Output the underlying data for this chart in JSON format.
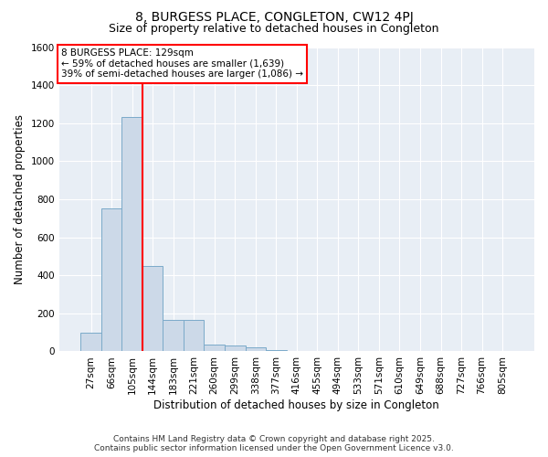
{
  "title": "8, BURGESS PLACE, CONGLETON, CW12 4PJ",
  "subtitle": "Size of property relative to detached houses in Congleton",
  "xlabel": "Distribution of detached houses by size in Congleton",
  "ylabel": "Number of detached properties",
  "categories": [
    "27sqm",
    "66sqm",
    "105sqm",
    "144sqm",
    "183sqm",
    "221sqm",
    "260sqm",
    "299sqm",
    "338sqm",
    "377sqm",
    "416sqm",
    "455sqm",
    "494sqm",
    "533sqm",
    "571sqm",
    "610sqm",
    "649sqm",
    "688sqm",
    "727sqm",
    "766sqm",
    "805sqm"
  ],
  "values": [
    100,
    750,
    1230,
    450,
    165,
    165,
    35,
    30,
    20,
    5,
    2,
    1,
    0,
    0,
    0,
    0,
    0,
    0,
    0,
    0,
    0
  ],
  "bar_color": "#ccd9e8",
  "bar_edge_color": "#7baac9",
  "ylim": [
    0,
    1600
  ],
  "yticks": [
    0,
    200,
    400,
    600,
    800,
    1000,
    1200,
    1400,
    1600
  ],
  "red_line_x": 2.5,
  "annotation_text": "8 BURGESS PLACE: 129sqm\n← 59% of detached houses are smaller (1,639)\n39% of semi-detached houses are larger (1,086) →",
  "footer_line1": "Contains HM Land Registry data © Crown copyright and database right 2025.",
  "footer_line2": "Contains public sector information licensed under the Open Government Licence v3.0.",
  "bg_color": "#ffffff",
  "plot_bg_color": "#e8eef5",
  "grid_color": "#ffffff",
  "title_fontsize": 10,
  "subtitle_fontsize": 9,
  "axis_label_fontsize": 8.5,
  "tick_fontsize": 7.5,
  "annotation_fontsize": 7.5,
  "footer_fontsize": 6.5
}
